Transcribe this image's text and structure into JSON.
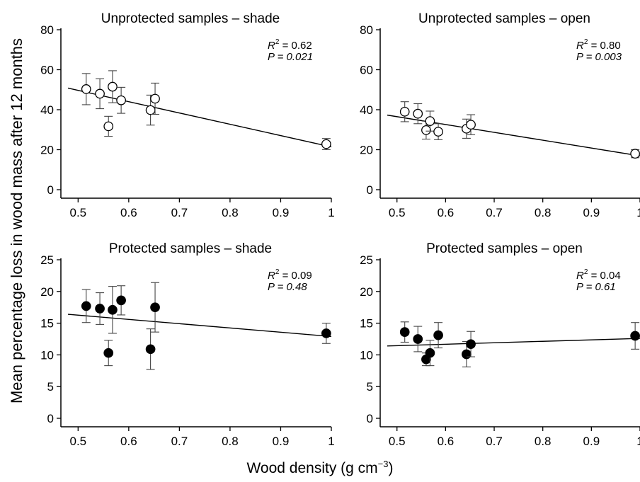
{
  "figure": {
    "ylabel": "Mean percentage loss in wood mass after 12 months",
    "xlabel_main": "Wood density (g cm",
    "xlabel_exp": "−3",
    "xlabel_close": ")"
  },
  "chart_data": [
    {
      "type": "scatter",
      "title": "Unprotected samples – shade",
      "marker": "open-circle",
      "xlim": [
        0.48,
        1.0
      ],
      "ylim": [
        0,
        80
      ],
      "xticks": [
        "0.5",
        "0.6",
        "0.7",
        "0.8",
        "0.9",
        "1"
      ],
      "yticks": [
        "0",
        "20",
        "40",
        "60",
        "80"
      ],
      "stats": {
        "r2_label": "R",
        "r2_exp": "2",
        "r2_value": " = 0.62",
        "p_label": "P",
        "p_value": " = 0.021"
      },
      "points": [
        {
          "x": 0.516,
          "y": 50.3,
          "err": 7.8
        },
        {
          "x": 0.543,
          "y": 48.0,
          "err": 7.5
        },
        {
          "x": 0.56,
          "y": 31.7,
          "err": 5.0
        },
        {
          "x": 0.568,
          "y": 51.5,
          "err": 8.0
        },
        {
          "x": 0.585,
          "y": 44.7,
          "err": 6.5
        },
        {
          "x": 0.643,
          "y": 39.8,
          "err": 7.5
        },
        {
          "x": 0.652,
          "y": 45.5,
          "err": 7.8
        },
        {
          "x": 0.99,
          "y": 22.8,
          "err": 2.8
        }
      ],
      "fit": {
        "x1": 0.48,
        "y1": 50.8,
        "x2": 1.0,
        "y2": 21.4
      }
    },
    {
      "type": "scatter",
      "title": "Unprotected samples – open",
      "marker": "open-circle",
      "xlim": [
        0.48,
        1.0
      ],
      "ylim": [
        0,
        80
      ],
      "xticks": [
        "0.5",
        "0.6",
        "0.7",
        "0.8",
        "0.9",
        "1"
      ],
      "yticks": [
        "0",
        "20",
        "40",
        "60",
        "80"
      ],
      "stats": {
        "r2_label": "R",
        "r2_exp": "2",
        "r2_value": " = 0.80",
        "p_label": "P",
        "p_value": " = 0.003"
      },
      "points": [
        {
          "x": 0.516,
          "y": 39.0,
          "err": 5.0
        },
        {
          "x": 0.543,
          "y": 38.0,
          "err": 5.0
        },
        {
          "x": 0.56,
          "y": 29.8,
          "err": 4.5
        },
        {
          "x": 0.568,
          "y": 34.3,
          "err": 5.0
        },
        {
          "x": 0.585,
          "y": 29.0,
          "err": 4.0
        },
        {
          "x": 0.643,
          "y": 30.5,
          "err": 4.8
        },
        {
          "x": 0.652,
          "y": 32.5,
          "err": 5.0
        },
        {
          "x": 0.99,
          "y": 18.0,
          "err": 2.0
        }
      ],
      "fit": {
        "x1": 0.48,
        "y1": 37.3,
        "x2": 1.0,
        "y2": 16.9
      }
    },
    {
      "type": "scatter",
      "title": "Protected samples – shade",
      "marker": "filled-circle",
      "xlim": [
        0.48,
        1.0
      ],
      "ylim": [
        0,
        25
      ],
      "xticks": [
        "0.5",
        "0.6",
        "0.7",
        "0.8",
        "0.9",
        "1"
      ],
      "yticks": [
        "0",
        "5",
        "10",
        "15",
        "20",
        "25"
      ],
      "stats": {
        "r2_label": "R",
        "r2_exp": "2",
        "r2_value": " = 0.09",
        "p_label": "P",
        "p_value": " = 0.48"
      },
      "points": [
        {
          "x": 0.516,
          "y": 17.7,
          "err": 2.6
        },
        {
          "x": 0.543,
          "y": 17.3,
          "err": 2.5
        },
        {
          "x": 0.56,
          "y": 10.3,
          "err": 2.0
        },
        {
          "x": 0.568,
          "y": 17.1,
          "err": 3.7
        },
        {
          "x": 0.585,
          "y": 18.6,
          "err": 2.3
        },
        {
          "x": 0.643,
          "y": 10.9,
          "err": 3.2
        },
        {
          "x": 0.652,
          "y": 17.5,
          "err": 3.9
        },
        {
          "x": 0.99,
          "y": 13.4,
          "err": 1.6
        }
      ],
      "fit": {
        "x1": 0.48,
        "y1": 16.4,
        "x2": 1.0,
        "y2": 12.9
      }
    },
    {
      "type": "scatter",
      "title": "Protected samples – open",
      "marker": "filled-circle",
      "xlim": [
        0.48,
        1.0
      ],
      "ylim": [
        0,
        25
      ],
      "xticks": [
        "0.5",
        "0.6",
        "0.7",
        "0.8",
        "0.9",
        "1"
      ],
      "yticks": [
        "0",
        "5",
        "10",
        "15",
        "20",
        "25"
      ],
      "stats": {
        "r2_label": "R",
        "r2_exp": "2",
        "r2_value": " = 0.04",
        "p_label": "P",
        "p_value": " = 0.61"
      },
      "points": [
        {
          "x": 0.516,
          "y": 13.6,
          "err": 1.6
        },
        {
          "x": 0.543,
          "y": 12.5,
          "err": 2.0
        },
        {
          "x": 0.56,
          "y": 9.3,
          "err": 1.0
        },
        {
          "x": 0.568,
          "y": 10.3,
          "err": 2.0
        },
        {
          "x": 0.585,
          "y": 13.1,
          "err": 2.0
        },
        {
          "x": 0.643,
          "y": 10.1,
          "err": 2.0
        },
        {
          "x": 0.652,
          "y": 11.7,
          "err": 2.0
        },
        {
          "x": 0.99,
          "y": 13.0,
          "err": 2.1
        }
      ],
      "fit": {
        "x1": 0.48,
        "y1": 11.4,
        "x2": 1.0,
        "y2": 12.6
      }
    }
  ]
}
